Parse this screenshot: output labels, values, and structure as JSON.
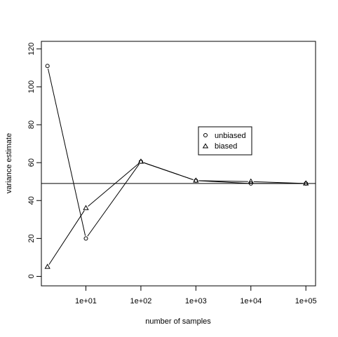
{
  "chart_data": {
    "type": "line",
    "xlabel": "number of samples",
    "ylabel": "variance estimate",
    "x_scale": "log",
    "x": [
      2,
      10,
      100,
      1000,
      10000,
      100000
    ],
    "x_ticks": [
      10,
      100,
      1000,
      10000,
      100000
    ],
    "x_tick_labels": [
      "1e+01",
      "1e+02",
      "1e+03",
      "1e+04",
      "1e+05"
    ],
    "y_ticks": [
      0,
      20,
      40,
      60,
      80,
      100,
      120
    ],
    "y_tick_labels": [
      "0",
      "20",
      "40",
      "60",
      "80",
      "100",
      "120"
    ],
    "ylim": [
      -5,
      124
    ],
    "xlim": [
      1.55,
      150000
    ],
    "reference_line": 49,
    "grid": false,
    "legend_placement": "center-right",
    "series": [
      {
        "name": "unbiased",
        "marker": "circle",
        "values": [
          111,
          20,
          60.5,
          50.5,
          49,
          49
        ]
      },
      {
        "name": "biased",
        "marker": "triangle",
        "values": [
          5,
          36,
          60.5,
          50.5,
          50,
          49
        ]
      }
    ]
  }
}
